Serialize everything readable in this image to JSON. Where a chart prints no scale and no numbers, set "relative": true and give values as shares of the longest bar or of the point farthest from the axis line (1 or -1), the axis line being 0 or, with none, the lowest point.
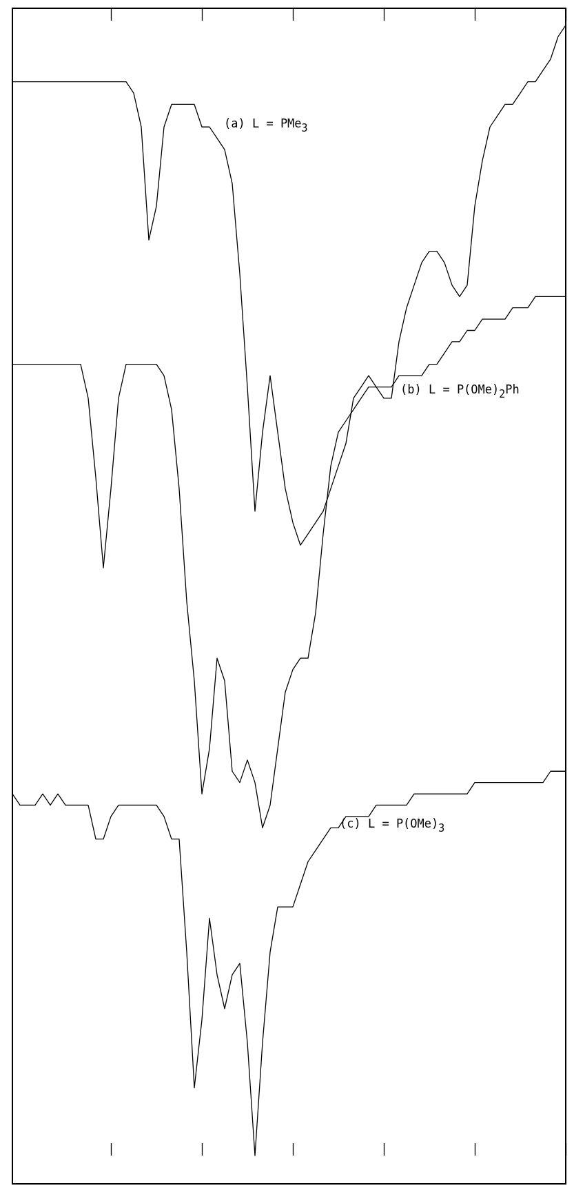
{
  "chart_data": {
    "type": "line",
    "relative": true,
    "marker": "none",
    "categories": [
      null,
      null,
      null,
      null,
      null,
      null,
      null,
      null,
      null,
      null,
      null,
      null,
      null,
      null,
      null,
      null,
      null,
      null,
      null,
      null,
      null,
      null,
      null,
      null,
      null,
      null,
      null,
      null,
      null,
      null,
      null,
      null,
      null,
      null,
      null,
      null,
      null,
      null,
      null,
      null,
      null,
      null,
      null,
      null,
      null,
      null,
      null,
      null,
      null,
      null,
      null,
      null,
      null,
      null,
      null,
      null,
      null,
      null,
      null,
      null,
      null,
      null,
      null,
      null,
      null,
      null,
      null,
      null,
      null,
      null,
      null,
      null,
      null,
      null
    ],
    "series": [
      {
        "name": "(a) L = PMe$_{3}$",
        "color": "#000000",
        "values": [
          0.95,
          0.95,
          0.95,
          0.95,
          0.95,
          0.95,
          0.95,
          0.95,
          0.95,
          0.95,
          0.95,
          0.95,
          0.95,
          0.95,
          0.95,
          0.95,
          0.94,
          0.91,
          0.81,
          0.84,
          0.91,
          0.93,
          0.93,
          0.93,
          0.93,
          0.91,
          0.91,
          0.9,
          0.89,
          0.86,
          0.78,
          0.68,
          0.57,
          0.64,
          0.69,
          0.64,
          0.59,
          0.56,
          0.54,
          0.55,
          0.56,
          0.57,
          0.59,
          0.61,
          0.63,
          0.67,
          0.68,
          0.69,
          0.68,
          0.67,
          0.67,
          0.72,
          0.75,
          0.77,
          0.79,
          0.8,
          0.8,
          0.79,
          0.77,
          0.76,
          0.77,
          0.84,
          0.88,
          0.91,
          0.92,
          0.93,
          0.93,
          0.94,
          0.95,
          0.95,
          0.96,
          0.97,
          0.99,
          1
        ]
      },
      {
        "name": "(b) L = P(OMe)$_{2}$Ph",
        "color": "#000000",
        "values": [
          0.7,
          0.7,
          0.7,
          0.7,
          0.7,
          0.7,
          0.7,
          0.7,
          0.7,
          0.7,
          0.67,
          0.6,
          0.52,
          0.59,
          0.67,
          0.7,
          0.7,
          0.7,
          0.7,
          0.7,
          0.69,
          0.66,
          0.59,
          0.49,
          0.42,
          0.32,
          0.36,
          0.44,
          0.42,
          0.34,
          0.33,
          0.35,
          0.33,
          0.29,
          0.31,
          0.36,
          0.41,
          0.43,
          0.44,
          0.44,
          0.48,
          0.55,
          0.61,
          0.64,
          0.65,
          0.66,
          0.67,
          0.68,
          0.68,
          0.68,
          0.68,
          0.69,
          0.69,
          0.69,
          0.69,
          0.7,
          0.7,
          0.71,
          0.72,
          0.72,
          0.73,
          0.73,
          0.74,
          0.74,
          0.74,
          0.74,
          0.75,
          0.75,
          0.75,
          0.76,
          0.76,
          0.76,
          0.76,
          0.76
        ]
      },
      {
        "name": "(c) L = P(OMe)$_{3}$",
        "color": "#000000",
        "values": [
          0.32,
          0.31,
          0.31,
          0.31,
          0.32,
          0.31,
          0.32,
          0.31,
          0.31,
          0.31,
          0.31,
          0.28,
          0.28,
          0.3,
          0.31,
          0.31,
          0.31,
          0.31,
          0.31,
          0.31,
          0.3,
          0.28,
          0.28,
          0.18,
          0.06,
          0.12,
          0.21,
          0.16,
          0.13,
          0.16,
          0.17,
          0.1,
          0,
          0.1,
          0.18,
          0.22,
          0.22,
          0.22,
          0.24,
          0.26,
          0.27,
          0.28,
          0.29,
          0.29,
          0.3,
          0.3,
          0.3,
          0.3,
          0.31,
          0.31,
          0.31,
          0.31,
          0.31,
          0.32,
          0.32,
          0.32,
          0.32,
          0.32,
          0.32,
          0.32,
          0.32,
          0.33,
          0.33,
          0.33,
          0.33,
          0.33,
          0.33,
          0.33,
          0.33,
          0.33,
          0.33,
          0.34,
          0.34,
          0.34
        ]
      }
    ]
  }
}
